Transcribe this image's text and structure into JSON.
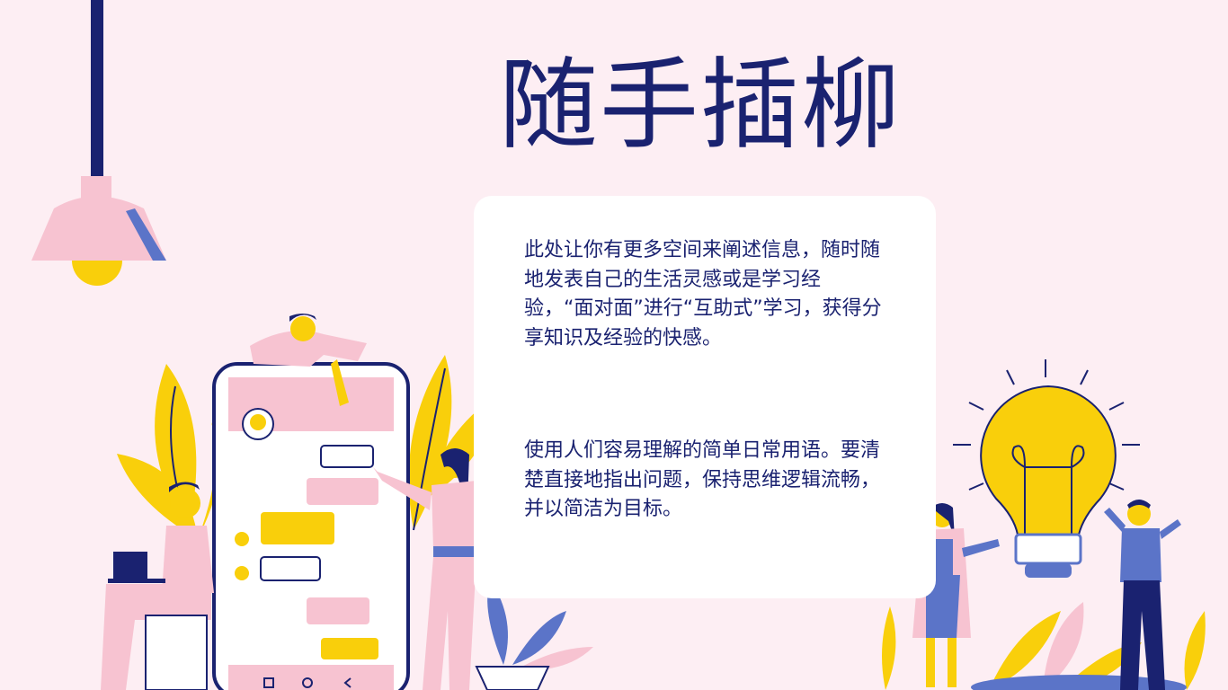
{
  "page": {
    "title": "随手插柳",
    "paragraph_1": "此处让你有更多空间来阐述信息，随时随地发表自己的生活灵感或是学习经验，“面对面”进行“互助式”学习，获得分享知识及经验的快感。",
    "paragraph_2": "使用人们容易理解的简单日常用语。要清楚直接地指出问题，保持思维逻辑流畅，并以简洁为目标。"
  },
  "colors": {
    "background": "#fdeef3",
    "navy": "#1a2270",
    "pink": "#f7c3d1",
    "yellow": "#f9cf0b",
    "blue": "#5b74c8"
  },
  "icons": [
    "ceiling-lamp-icon",
    "smartphone-icon",
    "lightbulb-icon",
    "laptop-icon",
    "leaf-icon"
  ]
}
